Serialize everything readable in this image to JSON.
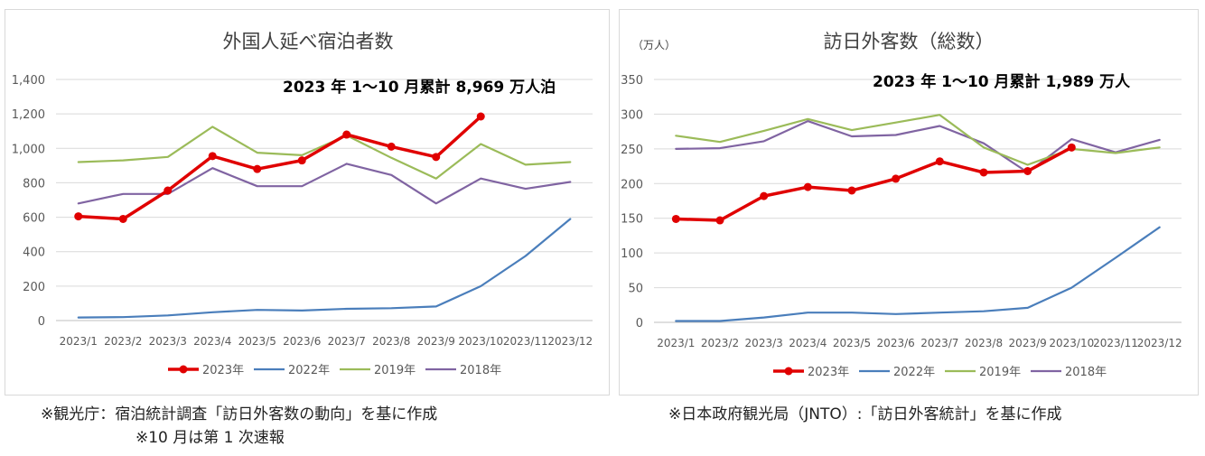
{
  "footnotes": {
    "left_line1": "※観光庁：宿泊統計調査「訪日外客数の動向」を基に作成",
    "left_line2": "※10 月は第 1 次速報",
    "right_line1": "※日本政府観光局（JNTO）:「訪日外客統計」を基に作成"
  },
  "chart_data": [
    {
      "type": "line",
      "title": "外国人延べ宿泊者数",
      "annotation": "2023 年 1～10 月累計 8,969 万人泊",
      "unit_label": "",
      "categories": [
        "2023/1",
        "2023/2",
        "2023/3",
        "2023/4",
        "2023/5",
        "2023/6",
        "2023/7",
        "2023/8",
        "2023/9",
        "2023/10",
        "2023/11",
        "2023/12"
      ],
      "ylim": [
        0,
        1400
      ],
      "yticks": [
        0,
        200,
        400,
        600,
        800,
        1000,
        1200,
        1400
      ],
      "ytick_labels": [
        "0",
        "200",
        "400",
        "600",
        "800",
        "1,000",
        "1,200",
        "1,400"
      ],
      "grid": true,
      "legend": "bottom",
      "series": [
        {
          "name": "2023年",
          "color": "#e00000",
          "markers": true,
          "values": [
            605,
            590,
            755,
            955,
            880,
            930,
            1080,
            1010,
            950,
            1185,
            null,
            null
          ]
        },
        {
          "name": "2022年",
          "color": "#4a7ebb",
          "markers": false,
          "values": [
            18,
            20,
            30,
            48,
            62,
            58,
            68,
            72,
            82,
            200,
            375,
            590
          ]
        },
        {
          "name": "2019年",
          "color": "#9bbb59",
          "markers": false,
          "values": [
            920,
            930,
            950,
            1125,
            975,
            960,
            1075,
            945,
            825,
            1025,
            905,
            920
          ]
        },
        {
          "name": "2018年",
          "color": "#8064a2",
          "markers": false,
          "values": [
            680,
            735,
            735,
            885,
            780,
            780,
            910,
            845,
            680,
            825,
            765,
            805
          ]
        }
      ]
    },
    {
      "type": "line",
      "title": "訪日外客数（総数）",
      "annotation": "2023 年 1～10 月累計 1,989 万人",
      "unit_label": "（万人）",
      "categories": [
        "2023/1",
        "2023/2",
        "2023/3",
        "2023/4",
        "2023/5",
        "2023/6",
        "2023/7",
        "2023/8",
        "2023/9",
        "2023/10",
        "2023/11",
        "2023/12"
      ],
      "ylim": [
        0,
        350
      ],
      "yticks": [
        0,
        50,
        100,
        150,
        200,
        250,
        300,
        350
      ],
      "ytick_labels": [
        "0",
        "50",
        "100",
        "150",
        "200",
        "250",
        "300",
        "350"
      ],
      "grid": true,
      "legend": "bottom",
      "series": [
        {
          "name": "2023年",
          "color": "#e00000",
          "markers": true,
          "values": [
            149,
            147,
            182,
            195,
            190,
            207,
            232,
            216,
            218,
            252,
            null,
            null
          ]
        },
        {
          "name": "2022年",
          "color": "#4a7ebb",
          "markers": false,
          "values": [
            2,
            2,
            7,
            14,
            14,
            12,
            14,
            16,
            21,
            50,
            93,
            137
          ]
        },
        {
          "name": "2019年",
          "color": "#9bbb59",
          "markers": false,
          "values": [
            269,
            260,
            276,
            293,
            277,
            288,
            299,
            252,
            227,
            250,
            244,
            252
          ]
        },
        {
          "name": "2018年",
          "color": "#8064a2",
          "markers": false,
          "values": [
            250,
            251,
            261,
            290,
            268,
            270,
            283,
            258,
            216,
            264,
            245,
            263
          ]
        }
      ]
    }
  ]
}
